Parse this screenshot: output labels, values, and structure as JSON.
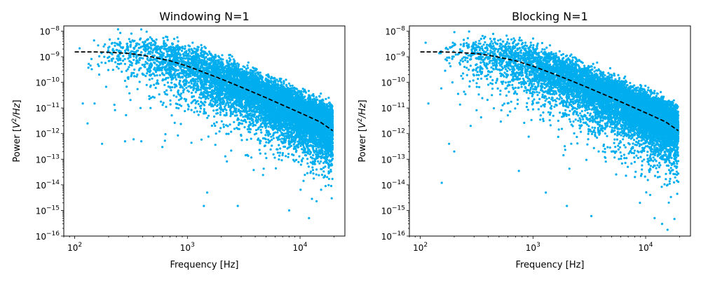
{
  "chart_data": [
    {
      "type": "scatter",
      "title": "Windowing N=1",
      "xlabel": "Frequency [Hz]",
      "ylabel": "Power [",
      "ylabel_math_base": "V",
      "ylabel_math_sup": "2",
      "ylabel_math_tail": "/Hz",
      "ylabel_close": "]",
      "xscale": "log",
      "yscale": "log",
      "xlim": [
        80,
        25000
      ],
      "ylim": [
        1e-16,
        1.6e-08
      ],
      "x_ticks": [
        {
          "value": 100,
          "base": "10",
          "exp": "2"
        },
        {
          "value": 1000,
          "base": "10",
          "exp": "3"
        },
        {
          "value": 10000,
          "base": "10",
          "exp": "4"
        }
      ],
      "y_ticks": [
        {
          "value": 1e-08,
          "base": "10",
          "exp": "−8"
        },
        {
          "value": 1e-09,
          "base": "10",
          "exp": "−9"
        },
        {
          "value": 1e-10,
          "base": "10",
          "exp": "−10"
        },
        {
          "value": 1e-11,
          "base": "10",
          "exp": "−11"
        },
        {
          "value": 1e-12,
          "base": "10",
          "exp": "−12"
        },
        {
          "value": 1e-13,
          "base": "10",
          "exp": "−13"
        },
        {
          "value": 1e-14,
          "base": "10",
          "exp": "−14"
        },
        {
          "value": 1e-15,
          "base": "10",
          "exp": "−15"
        },
        {
          "value": 1e-16,
          "base": "10",
          "exp": "−16"
        }
      ],
      "grid": false,
      "legend": "none",
      "series": [
        {
          "kind": "scatter",
          "color": "#00aeef",
          "x_range": [
            100,
            19500
          ],
          "model_corner_hz": 650,
          "model_low_level": 1.55e-09,
          "approx_points": [
            [
              100,
              1.4e-09
            ],
            [
              150,
              1.4e-09
            ],
            [
              200,
              1.3e-09
            ],
            [
              300,
              1.2e-09
            ],
            [
              400,
              1e-09
            ],
            [
              600,
              7.5e-10
            ],
            [
              800,
              5.5e-10
            ],
            [
              1000,
              4e-10
            ],
            [
              2000,
              1.2e-10
            ],
            [
              3000,
              5.5e-11
            ],
            [
              5000,
              2.2e-11
            ],
            [
              8000,
              9e-12
            ],
            [
              10000,
              6e-12
            ],
            [
              15000,
              2.8e-12
            ],
            [
              19000,
              1.8e-12
            ]
          ],
          "outliers": [
            [
              118,
              1.5e-11
            ],
            [
              130,
              2.5e-12
            ],
            [
              150,
              1.5e-11
            ],
            [
              175,
              4e-13
            ],
            [
              280,
              5e-13
            ],
            [
              390,
              5e-13
            ],
            [
              600,
              3e-13
            ],
            [
              1500,
              5e-15
            ],
            [
              2800,
              1.5e-15
            ],
            [
              1400,
              1.5e-15
            ],
            [
              8000,
              1e-15
            ],
            [
              12000,
              5e-16
            ]
          ]
        },
        {
          "kind": "line",
          "style": "dashed",
          "color": "#000000",
          "points": [
            [
              100,
              1.55e-09
            ],
            [
              150,
              1.55e-09
            ],
            [
              200,
              1.5e-09
            ],
            [
              300,
              1.35e-09
            ],
            [
              400,
              1.15e-09
            ],
            [
              500,
              9.5e-10
            ],
            [
              700,
              7e-10
            ],
            [
              1000,
              4.3e-10
            ],
            [
              1500,
              2.2e-10
            ],
            [
              2000,
              1.35e-10
            ],
            [
              3000,
              6.5e-11
            ],
            [
              5000,
              2.5e-11
            ],
            [
              7000,
              1.3e-11
            ],
            [
              10000,
              6.5e-12
            ],
            [
              15000,
              2.9e-12
            ],
            [
              19500,
              1.3e-12
            ]
          ]
        }
      ]
    },
    {
      "type": "scatter",
      "title": "Blocking N=1",
      "xlabel": "Frequency [Hz]",
      "ylabel": "Power [",
      "ylabel_math_base": "V",
      "ylabel_math_sup": "2",
      "ylabel_math_tail": "/Hz",
      "ylabel_close": "]",
      "xscale": "log",
      "yscale": "log",
      "xlim": [
        80,
        25000
      ],
      "ylim": [
        1e-16,
        1.6e-08
      ],
      "x_ticks": [
        {
          "value": 100,
          "base": "10",
          "exp": "2"
        },
        {
          "value": 1000,
          "base": "10",
          "exp": "3"
        },
        {
          "value": 10000,
          "base": "10",
          "exp": "4"
        }
      ],
      "y_ticks": [
        {
          "value": 1e-08,
          "base": "10",
          "exp": "−8"
        },
        {
          "value": 1e-09,
          "base": "10",
          "exp": "−9"
        },
        {
          "value": 1e-10,
          "base": "10",
          "exp": "−10"
        },
        {
          "value": 1e-11,
          "base": "10",
          "exp": "−11"
        },
        {
          "value": 1e-12,
          "base": "10",
          "exp": "−12"
        },
        {
          "value": 1e-13,
          "base": "10",
          "exp": "−13"
        },
        {
          "value": 1e-14,
          "base": "10",
          "exp": "−14"
        },
        {
          "value": 1e-15,
          "base": "10",
          "exp": "−15"
        },
        {
          "value": 1e-16,
          "base": "10",
          "exp": "−16"
        }
      ],
      "grid": false,
      "legend": "none",
      "series": [
        {
          "kind": "scatter",
          "color": "#00aeef",
          "x_range": [
            100,
            19500
          ],
          "model_corner_hz": 650,
          "model_low_level": 1.55e-09,
          "approx_points": [
            [
              100,
              1.4e-09
            ],
            [
              150,
              1.4e-09
            ],
            [
              200,
              1.3e-09
            ],
            [
              300,
              1.2e-09
            ],
            [
              400,
              1e-09
            ],
            [
              600,
              7.5e-10
            ],
            [
              800,
              5.5e-10
            ],
            [
              1000,
              4e-10
            ],
            [
              2000,
              1.2e-10
            ],
            [
              3000,
              5.5e-11
            ],
            [
              5000,
              2.2e-11
            ],
            [
              8000,
              9e-12
            ],
            [
              10000,
              6e-12
            ],
            [
              15000,
              2.8e-12
            ],
            [
              19000,
              1.8e-12
            ]
          ],
          "outliers": [
            [
              118,
              1.5e-11
            ],
            [
              155,
              1.2e-14
            ],
            [
              180,
              4e-13
            ],
            [
              200,
              2e-13
            ],
            [
              280,
              2e-12
            ],
            [
              750,
              3.5e-14
            ],
            [
              1300,
              5e-15
            ],
            [
              2000,
              1.5e-15
            ],
            [
              3300,
              6e-16
            ],
            [
              12000,
              5e-16
            ],
            [
              14000,
              3e-16
            ]
          ]
        },
        {
          "kind": "line",
          "style": "dashed",
          "color": "#000000",
          "points": [
            [
              100,
              1.55e-09
            ],
            [
              150,
              1.55e-09
            ],
            [
              200,
              1.5e-09
            ],
            [
              300,
              1.35e-09
            ],
            [
              400,
              1.15e-09
            ],
            [
              500,
              9.5e-10
            ],
            [
              700,
              7e-10
            ],
            [
              1000,
              4.3e-10
            ],
            [
              1500,
              2.2e-10
            ],
            [
              2000,
              1.35e-10
            ],
            [
              3000,
              6.5e-11
            ],
            [
              5000,
              2.5e-11
            ],
            [
              7000,
              1.3e-11
            ],
            [
              10000,
              6.5e-12
            ],
            [
              15000,
              2.9e-12
            ],
            [
              19500,
              1.3e-12
            ]
          ]
        }
      ]
    }
  ]
}
